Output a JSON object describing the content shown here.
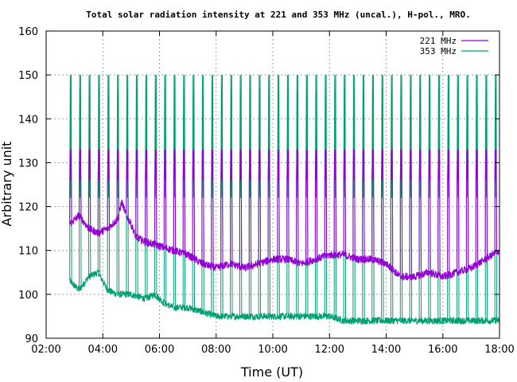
{
  "chart_data": {
    "type": "line",
    "title": "Total solar radiation intensity at 221 and 353 MHz (uncal.), H-pol., MRO.",
    "xlabel": "Time (UT)",
    "ylabel": "Arbitrary unit",
    "xlim": [
      "02:00",
      "18:00"
    ],
    "ylim": [
      90,
      160
    ],
    "x_ticks": [
      "02:00",
      "04:00",
      "06:00",
      "08:00",
      "10:00",
      "12:00",
      "14:00",
      "16:00",
      "18:00"
    ],
    "y_ticks": [
      90,
      100,
      110,
      120,
      130,
      140,
      150,
      160
    ],
    "grid": true,
    "legend_position": "top-right",
    "series": [
      {
        "name": "221 MHz",
        "color": "#9400d3",
        "baseline": [
          [
            "02:50",
            116
          ],
          [
            "03:10",
            118
          ],
          [
            "03:30",
            115
          ],
          [
            "03:50",
            114
          ],
          [
            "04:10",
            115
          ],
          [
            "04:30",
            117
          ],
          [
            "04:40",
            121
          ],
          [
            "04:50",
            118
          ],
          [
            "05:00",
            116
          ],
          [
            "05:10",
            113
          ],
          [
            "05:30",
            112
          ],
          [
            "06:00",
            111
          ],
          [
            "06:30",
            110
          ],
          [
            "07:00",
            109
          ],
          [
            "07:30",
            107
          ],
          [
            "08:00",
            106
          ],
          [
            "08:30",
            107
          ],
          [
            "09:00",
            106
          ],
          [
            "09:30",
            107
          ],
          [
            "10:00",
            108
          ],
          [
            "10:30",
            108
          ],
          [
            "11:00",
            107
          ],
          [
            "11:30",
            108
          ],
          [
            "12:00",
            109
          ],
          [
            "12:30",
            109
          ],
          [
            "13:00",
            108
          ],
          [
            "13:30",
            108
          ],
          [
            "14:00",
            107
          ],
          [
            "14:30",
            104
          ],
          [
            "15:00",
            104
          ],
          [
            "15:30",
            105
          ],
          [
            "16:00",
            104
          ],
          [
            "16:30",
            105
          ],
          [
            "17:00",
            106
          ],
          [
            "17:30",
            108
          ],
          [
            "18:00",
            110
          ]
        ],
        "calibration_spike_levels": [
          126,
          133
        ]
      },
      {
        "name": "353 MHz",
        "color": "#009e73",
        "baseline": [
          [
            "02:50",
            103
          ],
          [
            "03:10",
            101
          ],
          [
            "03:30",
            104
          ],
          [
            "03:50",
            105
          ],
          [
            "04:10",
            101
          ],
          [
            "04:30",
            100
          ],
          [
            "05:00",
            100
          ],
          [
            "05:30",
            99
          ],
          [
            "05:50",
            100
          ],
          [
            "06:10",
            98
          ],
          [
            "06:30",
            97
          ],
          [
            "07:00",
            97
          ],
          [
            "07:30",
            96
          ],
          [
            "08:00",
            95
          ],
          [
            "08:30",
            95
          ],
          [
            "09:00",
            95
          ],
          [
            "09:30",
            95
          ],
          [
            "10:00",
            95
          ],
          [
            "10:30",
            95
          ],
          [
            "11:00",
            95
          ],
          [
            "11:30",
            95
          ],
          [
            "12:00",
            95
          ],
          [
            "12:30",
            94
          ],
          [
            "13:00",
            94
          ],
          [
            "13:30",
            94
          ],
          [
            "14:00",
            94
          ],
          [
            "14:30",
            94
          ],
          [
            "15:00",
            94
          ],
          [
            "15:30",
            94
          ],
          [
            "16:00",
            94
          ],
          [
            "16:30",
            94
          ],
          [
            "17:00",
            94
          ],
          [
            "17:30",
            94
          ],
          [
            "18:00",
            94
          ]
        ],
        "calibration_spike_levels": [
          122,
          150
        ]
      }
    ],
    "calibration_spike_times": [
      "02:50",
      "03:10",
      "03:30",
      "03:50",
      "04:10",
      "04:30",
      "04:50",
      "05:10",
      "05:30",
      "05:50",
      "06:10",
      "06:30",
      "06:50",
      "07:10",
      "07:30",
      "07:50",
      "08:10",
      "08:30",
      "08:50",
      "09:10",
      "09:30",
      "09:50",
      "10:10",
      "10:30",
      "10:50",
      "11:10",
      "11:30",
      "11:50",
      "12:10",
      "12:30",
      "12:50",
      "13:10",
      "13:30",
      "13:50",
      "14:10",
      "14:30",
      "14:50",
      "15:10",
      "15:30",
      "15:50",
      "16:10",
      "16:30",
      "16:50",
      "17:10",
      "17:30",
      "17:50"
    ]
  }
}
